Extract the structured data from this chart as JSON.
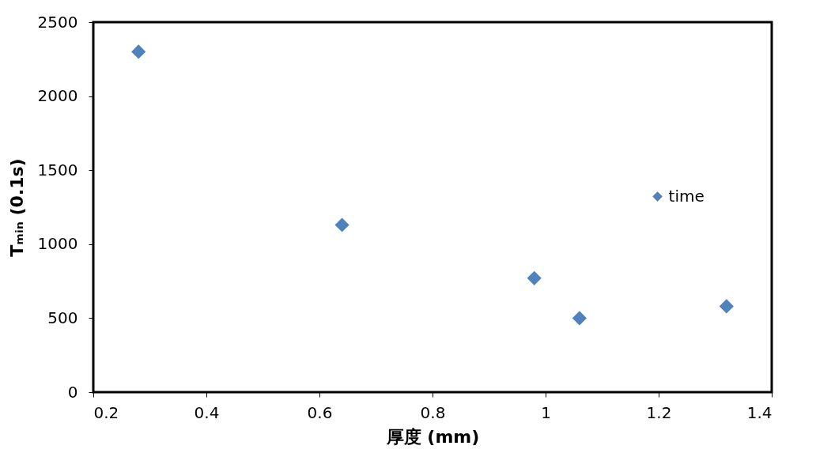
{
  "chart_data": {
    "type": "scatter",
    "xlabel": "厚度 (mm)",
    "ylabel": "Tₘᵢₙ  (0.1s)",
    "x": [
      0.28,
      0.64,
      0.98,
      1.06,
      1.32
    ],
    "series": [
      {
        "name": "time",
        "color": "#4f81bd",
        "values": [
          2300,
          1130,
          770,
          500,
          580
        ]
      }
    ],
    "xlim": [
      0.2,
      1.4
    ],
    "xticks": [
      0.2,
      0.4,
      0.6,
      0.8,
      {
        "value": 1,
        "label": "1"
      },
      1.2,
      1.4
    ],
    "ylim": [
      0,
      2500
    ],
    "yticks": [
      0,
      500,
      1000,
      1500,
      2000,
      2500
    ],
    "grid": false,
    "legend": "right",
    "marker": "diamond"
  }
}
